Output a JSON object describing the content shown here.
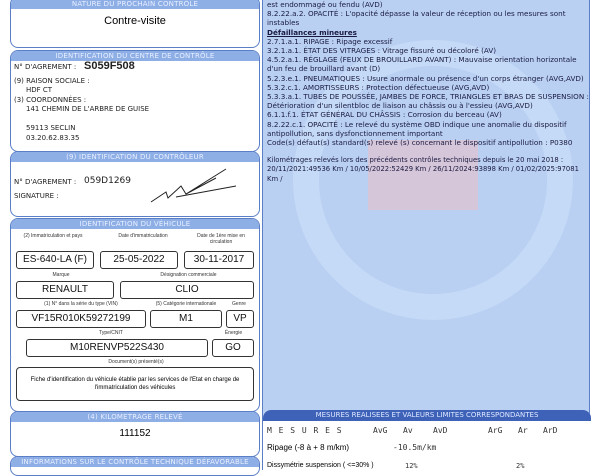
{
  "prochain": {
    "header": "NATURE DU PROCHAIN CONTRÔLE",
    "value": "Contre-visite"
  },
  "centre": {
    "header": "IDENTIFICATION DU CENTRE DE CONTRÔLE",
    "agrement_label": "N° D'AGREMENT :",
    "agrement": "S059F508",
    "raison_label": "(9) RAISON SOCIALE :",
    "raison": "HDF CT",
    "coord_label": "(3) COORDONNÉES :",
    "address1": "141 CHEMIN DE L'ARBRE DE GUISE",
    "address2": "59113 SECLIN",
    "phone": "03.20.62.83.35"
  },
  "controleur": {
    "header": "(9) IDENTIFICATION DU CONTRÔLEUR",
    "agrement_label": "N° D'AGREMENT :",
    "agrement": "059D1269",
    "signature_label": "SIGNATURE :"
  },
  "vehicule": {
    "header": "IDENTIFICATION DU VÉHICULE",
    "immat_label": "(2) Immatriculation et pays",
    "immat": "ES-640-LA (F)",
    "date_immat_label": "Date d'immatriculation",
    "date_immat": "25-05-2022",
    "date_mec_label": "Date de 1ère mise en circulation",
    "date_mec": "30-11-2017",
    "marque_label": "Marque",
    "marque": "RENAULT",
    "designation_label": "Désignation commerciale",
    "designation": "CLIO",
    "vin_label": "(1) N° dans la série du type (VIN)",
    "vin": "VF15R010K59272199",
    "categorie_label": "(5) Catégorie internationale",
    "categorie": "M1",
    "genre_label": "Genre",
    "genre": "VP",
    "type_label": "Type/CNIT",
    "type": "M10RENVP522S430",
    "energie_label": "Énergie",
    "energie": "GO",
    "docs_label": "Document(s) présenté(s)",
    "docs": "Fiche d'identification du véhicule établie par les services de l'Etat en charge de l'immatriculation des véhicules"
  },
  "kilometrage": {
    "header": "(4) KILOMETRAGE RELEVÉ",
    "value": "111152"
  },
  "defavorable": {
    "header": "INFORMATIONS SUR LE CONTRÔLE TECHNIQUE DÉFAVORABLE"
  },
  "defaillances": {
    "top_lines": [
      "est endommagé ou fendu (AVD)",
      "8.2.22.a.2. OPACITÉ : L'opacité dépasse la valeur de réception ou les mesures sont instables"
    ],
    "mineures_title": "Défaillances mineures",
    "mineures": [
      "2.7.1.a.1. RIPAGE : Ripage excessif",
      "3.2.1.a.1. ÉTAT DES VITRAGES : Vitrage fissuré ou décoloré (AV)",
      "4.5.2.a.1. RÉGLAGE (FEUX DE BROUILLARD AVANT) : Mauvaise orientation horizontale d'un feu de brouillard avant (D)",
      "5.2.3.e.1. PNEUMATIQUES : Usure anormale ou présence d'un corps étranger (AVG,AVD)",
      "5.3.2.c.1. AMORTISSEURS : Protection défectueuse (AVG,AVD)",
      "5.3.3.a.1. TUBES DE POUSSÉE, JAMBES DE FORCE, TRIANGLES ET BRAS DE SUSPENSION : Détérioration d'un silentbloc de liaison au châssis ou à l'essieu (AVG,AVD)",
      "6.1.1.f.1. ÉTAT GÉNÉRAL DU CHÂSSIS : Corrosion du berceau (AV)",
      "8.2.22.c.1. OPACITÉ : Le relevé du système OBD indique une anomalie du dispositif antipollution, sans dysfonctionnement important"
    ],
    "codes": "Code(s) défaut(s) standard(s) relevé (s) concernant le dispositif antipollution : P0380",
    "km_history": "Kilométrages relevés lors des précédents contrôles techniques depuis le 20 mai 2018 : 20/11/2021:49536 Km / 10/05/2022:52429 Km / 26/11/2024:93898 Km / 01/02/2025:97081 Km /"
  },
  "mesures": {
    "header": "MESURES REALISEES ET VALEURS LIMITES CORRESPONDANTES",
    "title": "M E S U R E S",
    "cols": [
      "AvG",
      "Av",
      "AvD",
      "ArG",
      "Ar",
      "ArD"
    ],
    "rows": [
      {
        "label": "Ripage (-8 à + 8 m/km)",
        "av": "-10.5m/km"
      },
      {
        "label": "Dissymétrie suspension ( <=30% )",
        "avg": "12%",
        "ar": "2%"
      }
    ]
  },
  "colors": {
    "header": "#8eaee6",
    "panel": "#b9d0f3",
    "mesures_header": "#3e62b8"
  }
}
